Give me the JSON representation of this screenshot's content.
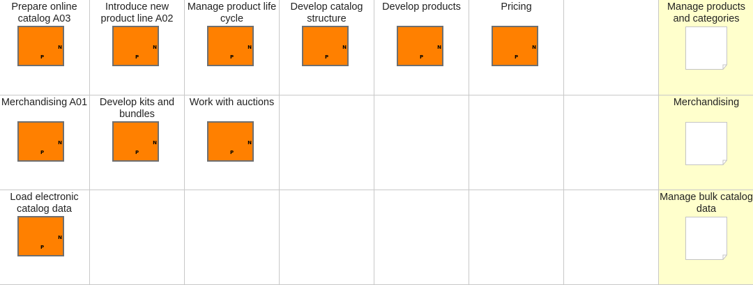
{
  "rows": [
    {
      "processes": [
        {
          "title": "Prepare online catalog A03",
          "n": "N",
          "p": "P"
        },
        {
          "title": "Introduce new product line A02",
          "n": "N",
          "p": "P"
        },
        {
          "title": "Manage product life cycle",
          "n": "N",
          "p": "P"
        },
        {
          "title": "Develop catalog structure",
          "n": "N",
          "p": "P"
        },
        {
          "title": "Develop products",
          "n": "N",
          "p": "P"
        },
        {
          "title": "Pricing",
          "n": "N",
          "p": "P"
        }
      ],
      "category": "Manage products and categories"
    },
    {
      "processes": [
        {
          "title": "Merchandising A01",
          "n": "N",
          "p": "P"
        },
        {
          "title": "Develop kits and bundles",
          "n": "N",
          "p": "P"
        },
        {
          "title": "Work with auctions",
          "n": "N",
          "p": "P"
        }
      ],
      "category": "Merchandising"
    },
    {
      "processes": [
        {
          "title": "Load electronic catalog data",
          "n": "N",
          "p": "P"
        }
      ],
      "category": "Manage bulk catalog data"
    }
  ],
  "colors": {
    "process_fill": "#ff8000",
    "process_border": "#6f6f6f",
    "category_fill": "#ffffcc",
    "grid_line": "#c8c8c8"
  }
}
